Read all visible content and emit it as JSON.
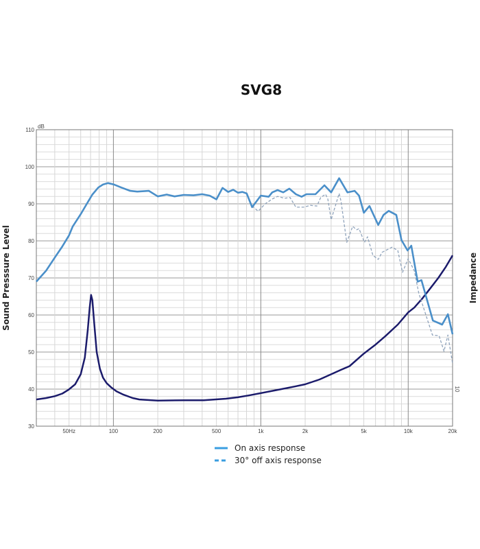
{
  "chart_data": {
    "type": "line",
    "title": "SVG8",
    "xlabel": "",
    "ylabel": "Sound Presssure Level",
    "y2label": "Impedance",
    "yunit": "dB",
    "xscale": "log",
    "xlim": [
      30,
      20000
    ],
    "ylim": [
      30,
      110
    ],
    "grid": true,
    "legend_position": "bottom-center",
    "x_tick_labels": [
      {
        "value": 50,
        "label": "50Hz"
      },
      {
        "value": 100,
        "label": "100"
      },
      {
        "value": 200,
        "label": "200"
      },
      {
        "value": 500,
        "label": "500"
      },
      {
        "value": 1000,
        "label": "1k"
      },
      {
        "value": 2000,
        "label": "2k"
      },
      {
        "value": 5000,
        "label": "5k"
      },
      {
        "value": 10000,
        "label": "10k"
      },
      {
        "value": 20000,
        "label": "20k"
      }
    ],
    "y_tick_labels": [
      "30",
      "40",
      "50",
      "60",
      "70",
      "80",
      "90",
      "100",
      "110"
    ],
    "y2_tick_labels": [
      {
        "label": "10",
        "at_left_axis_value": 40
      }
    ],
    "series": [
      {
        "name": "On axis response",
        "color": "#4a8fc9",
        "style": "solid",
        "x": [
          30,
          35,
          40,
          45,
          50,
          53,
          60,
          66,
          72,
          79,
          85,
          92,
          101,
          113,
          130,
          145,
          174,
          200,
          230,
          260,
          300,
          350,
          400,
          450,
          500,
          550,
          600,
          650,
          700,
          750,
          802,
          873,
          1000,
          1130,
          1195,
          1300,
          1420,
          1560,
          1730,
          1890,
          2040,
          2350,
          2700,
          3000,
          3400,
          3870,
          4330,
          4640,
          5000,
          5460,
          6260,
          6800,
          7380,
          8300,
          9000,
          9900,
          10500,
          11600,
          12300,
          14700,
          17000,
          18600,
          20000
        ],
        "y": [
          69,
          72,
          75.5,
          78.5,
          81.5,
          83.9,
          87.2,
          90,
          92.5,
          94.4,
          95.2,
          95.6,
          95.2,
          94.4,
          93.5,
          93.3,
          93.5,
          92,
          92.5,
          92,
          92.4,
          92.3,
          92.6,
          92.2,
          91.2,
          94.3,
          93.2,
          93.8,
          93,
          93.2,
          92.8,
          89.1,
          92.2,
          91.9,
          93.1,
          93.7,
          93.1,
          94.1,
          92.6,
          91.9,
          92.6,
          92.6,
          95,
          93.1,
          96.9,
          93.1,
          93.5,
          92.2,
          87.6,
          89.4,
          84.3,
          87,
          88.1,
          87,
          80.2,
          77.4,
          78.7,
          69,
          69.4,
          58.5,
          57.4,
          60.2,
          54.8
        ]
      },
      {
        "name": "30° off axis response",
        "color": "#8fa3bb",
        "style": "dashed",
        "x": [
          700,
          750,
          802,
          873,
          960,
          1070,
          1195,
          1300,
          1450,
          1580,
          1730,
          1950,
          2170,
          2400,
          2550,
          2750,
          2850,
          3000,
          3100,
          3400,
          3500,
          3830,
          4200,
          4480,
          4640,
          5050,
          5300,
          5760,
          6260,
          6640,
          7780,
          8500,
          9150,
          10000,
          11000,
          11800,
          14600,
          16200,
          17500,
          18600,
          20000
        ],
        "y": [
          93,
          93.2,
          92.6,
          89.4,
          88,
          90,
          91.3,
          92,
          91.5,
          91.7,
          89.1,
          89.1,
          89.6,
          89.4,
          91.7,
          92.6,
          91.3,
          85.7,
          87.6,
          92.8,
          90.7,
          79.6,
          83.9,
          83,
          83.3,
          79.6,
          81.1,
          76.1,
          75,
          76.9,
          78.3,
          77.4,
          71.5,
          75.2,
          71.9,
          65.9,
          54.6,
          54.4,
          50.2,
          54.6,
          46.9
        ]
      },
      {
        "name": "",
        "color": "#1b1b6b",
        "style": "solid",
        "x": [
          30,
          35,
          40,
          45,
          49.5,
          55,
          60,
          64,
          67,
          69,
          70.5,
          72,
          74,
          77,
          81,
          85,
          90,
          97,
          105,
          117,
          135,
          150,
          200,
          300,
          410,
          580,
          700,
          830,
          1000,
          1300,
          1700,
          2000,
          2500,
          3000,
          3500,
          4000,
          5000,
          6000,
          7000,
          8500,
          10000,
          11000,
          12500,
          14000,
          16000,
          18000,
          20000
        ],
        "y": [
          37.2,
          37.6,
          38.1,
          38.8,
          39.8,
          41.3,
          44,
          48.5,
          56,
          62,
          65.4,
          64,
          58,
          50,
          45.5,
          43.1,
          41.6,
          40.4,
          39.4,
          38.5,
          37.6,
          37.2,
          36.9,
          37,
          37,
          37.4,
          37.8,
          38.3,
          38.9,
          39.8,
          40.7,
          41.3,
          42.6,
          44,
          45.2,
          46.2,
          49.6,
          52,
          54.3,
          57.4,
          60.7,
          62,
          64.5,
          67,
          70,
          73,
          76.1
        ]
      }
    ]
  }
}
